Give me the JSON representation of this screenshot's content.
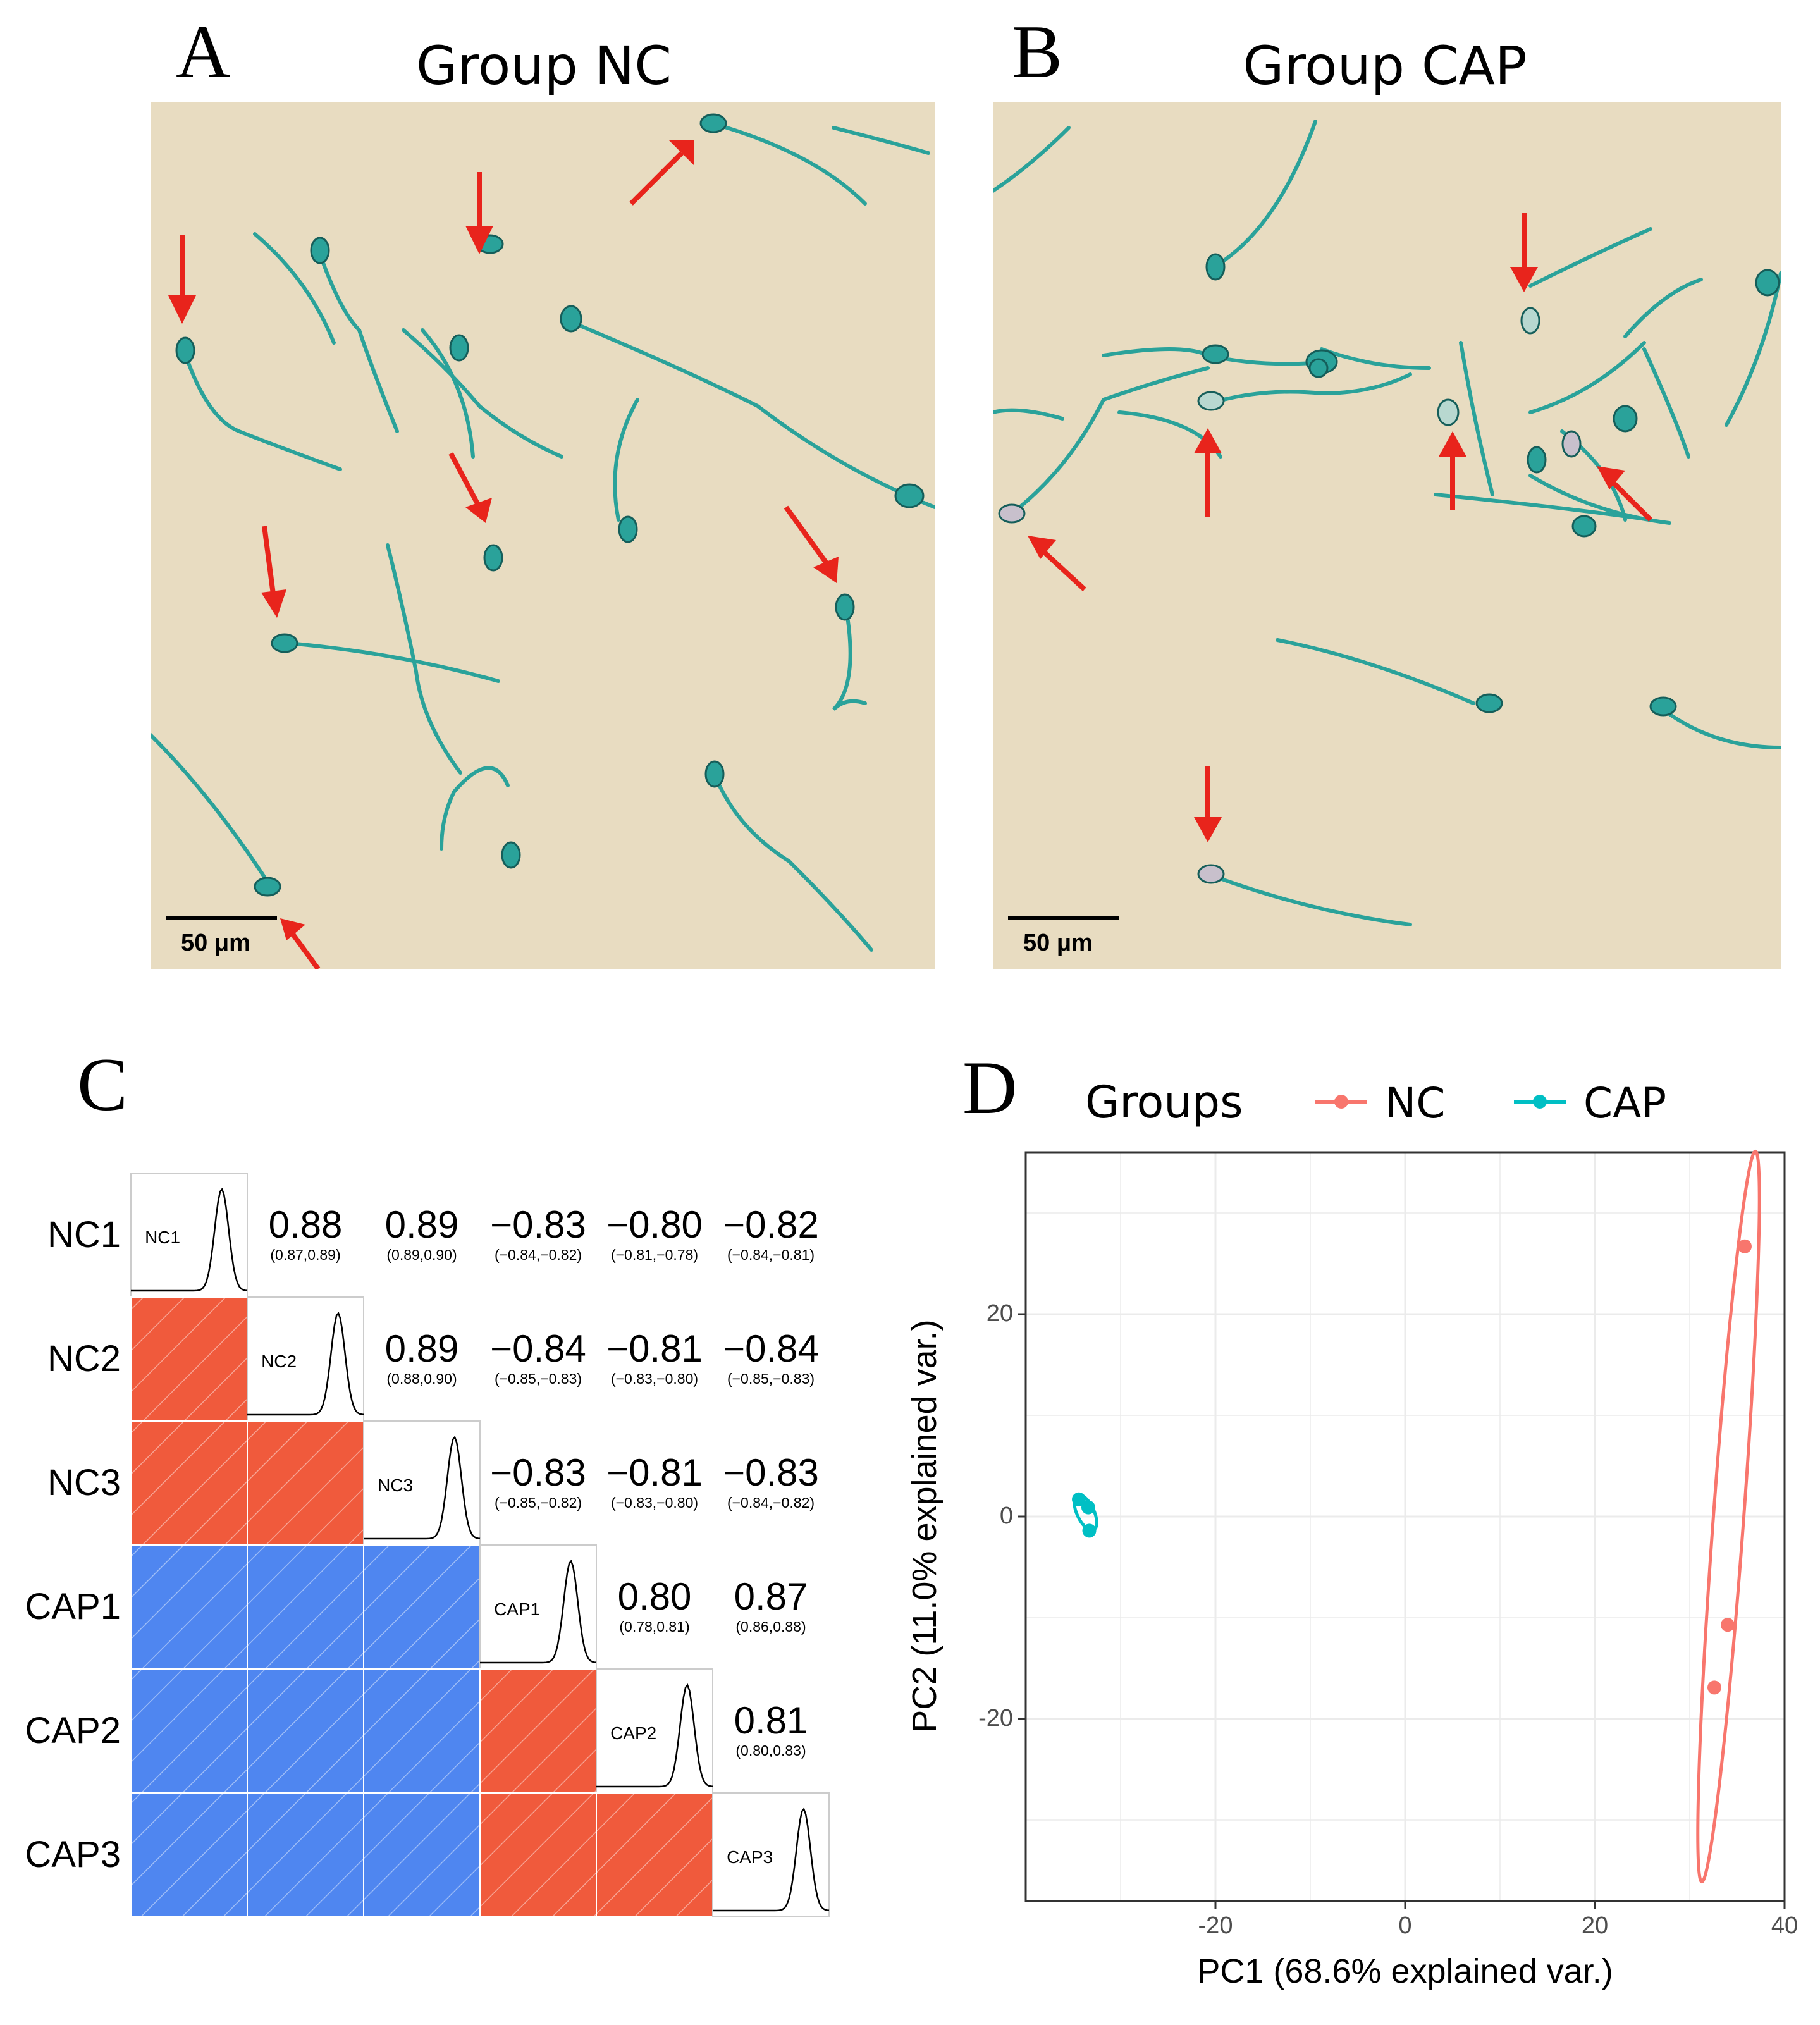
{
  "panel_a": {
    "letter": "A",
    "title": "Group NC",
    "scale_bar": "50 μm",
    "colors": {
      "background": "#e8dcc1",
      "sperm": "#2aa29a",
      "arrow": "#e8241c"
    }
  },
  "panel_b": {
    "letter": "B",
    "title": "Group CAP",
    "scale_bar": "50 μm"
  },
  "panel_c": {
    "letter": "C",
    "colors": {
      "positive": "#f05a3c",
      "negative": "#4f86f0"
    }
  },
  "panel_d": {
    "letter": "D",
    "legend_title": "Groups"
  },
  "chart_data": [
    {
      "type": "heatmap",
      "title": "",
      "samples": [
        "NC1",
        "NC2",
        "NC3",
        "CAP1",
        "CAP2",
        "CAP3"
      ],
      "diagonal": "density curves",
      "upper_triangle": [
        {
          "row": "NC1",
          "col": "NC2",
          "r": "0.88",
          "ci": "(0.87,0.89)"
        },
        {
          "row": "NC1",
          "col": "NC3",
          "r": "0.89",
          "ci": "(0.89,0.90)"
        },
        {
          "row": "NC1",
          "col": "CAP1",
          "r": "−0.83",
          "ci": "(−0.84,−0.82)"
        },
        {
          "row": "NC1",
          "col": "CAP2",
          "r": "−0.80",
          "ci": "(−0.81,−0.78)"
        },
        {
          "row": "NC1",
          "col": "CAP3",
          "r": "−0.82",
          "ci": "(−0.84,−0.81)"
        },
        {
          "row": "NC2",
          "col": "NC3",
          "r": "0.89",
          "ci": "(0.88,0.90)"
        },
        {
          "row": "NC2",
          "col": "CAP1",
          "r": "−0.84",
          "ci": "(−0.85,−0.83)"
        },
        {
          "row": "NC2",
          "col": "CAP2",
          "r": "−0.81",
          "ci": "(−0.83,−0.80)"
        },
        {
          "row": "NC2",
          "col": "CAP3",
          "r": "−0.84",
          "ci": "(−0.85,−0.83)"
        },
        {
          "row": "NC3",
          "col": "CAP1",
          "r": "−0.83",
          "ci": "(−0.85,−0.82)"
        },
        {
          "row": "NC3",
          "col": "CAP2",
          "r": "−0.81",
          "ci": "(−0.83,−0.80)"
        },
        {
          "row": "NC3",
          "col": "CAP3",
          "r": "−0.83",
          "ci": "(−0.84,−0.82)"
        },
        {
          "row": "CAP1",
          "col": "CAP2",
          "r": "0.80",
          "ci": "(0.78,0.81)"
        },
        {
          "row": "CAP1",
          "col": "CAP3",
          "r": "0.87",
          "ci": "(0.86,0.88)"
        },
        {
          "row": "CAP2",
          "col": "CAP3",
          "r": "0.81",
          "ci": "(0.80,0.83)"
        }
      ],
      "lower_triangle": "colored tiles: red = positive correlation, blue = negative correlation"
    },
    {
      "type": "scatter",
      "title": "",
      "xlabel": "PC1 (68.6% explained var.)",
      "ylabel": "PC2 (11.0% explained var.)",
      "xlim": [
        -40,
        40
      ],
      "ylim": [
        -38,
        36
      ],
      "xticks": [
        -20,
        0,
        20,
        40
      ],
      "yticks": [
        -20,
        0,
        20
      ],
      "legend_title": "Groups",
      "legend_position": "top",
      "series": [
        {
          "name": "NC",
          "color": "#f8766d",
          "points": [
            [
              35.8,
              26.7
            ],
            [
              34.0,
              -10.7
            ],
            [
              32.6,
              -16.9
            ]
          ],
          "ellipse": {
            "cx": 34.1,
            "cy": 0.0,
            "rx": 1.6,
            "ry": 36.2,
            "angle_deg": 4.2
          }
        },
        {
          "name": "CAP",
          "color": "#00bfc4",
          "points": [
            [
              -34.4,
              1.7
            ],
            [
              -33.4,
              0.9
            ],
            [
              -33.3,
              -1.4
            ]
          ],
          "ellipse": {
            "cx": -33.7,
            "cy": 0.4,
            "rx": 0.9,
            "ry": 1.9,
            "angle_deg": -25
          }
        }
      ]
    }
  ]
}
